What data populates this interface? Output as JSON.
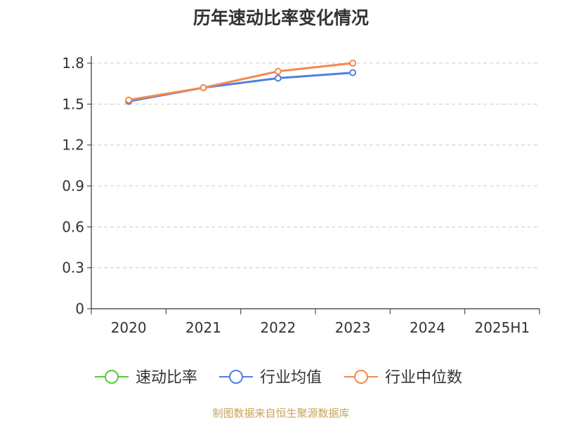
{
  "chart_data": {
    "type": "line",
    "title": "历年速动比率变化情况",
    "categories": [
      "2020",
      "2021",
      "2022",
      "2023",
      "2024",
      "2025H1"
    ],
    "yticks": [
      "0",
      "0.3",
      "0.6",
      "0.9",
      "1.2",
      "1.5",
      "1.8"
    ],
    "ylim": [
      0,
      1.8
    ],
    "grid": true,
    "legend_position": "bottom",
    "series": [
      {
        "name": "速动比率",
        "color": "#5ac73a",
        "values": [
          null,
          null,
          null,
          null,
          null,
          null
        ]
      },
      {
        "name": "行业均值",
        "color": "#4f7fde",
        "values": [
          1.52,
          1.62,
          1.69,
          1.73,
          null,
          null
        ]
      },
      {
        "name": "行业中位数",
        "color": "#f5884f",
        "values": [
          1.53,
          1.62,
          1.74,
          1.8,
          null,
          null
        ]
      }
    ]
  },
  "source_note": "制图数据来自恒生聚源数据库"
}
